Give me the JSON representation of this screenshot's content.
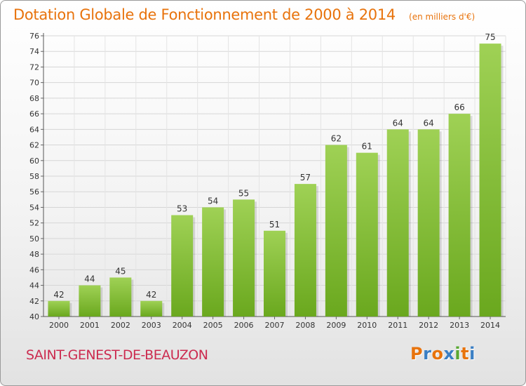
{
  "header": {
    "title": "Dotation Globale de Fonctionnement de 2000 à 2014",
    "subtitle": "(en milliers d'€)"
  },
  "footer": {
    "commune": "SAINT-GENEST-DE-BEAUZON",
    "logo_letters": [
      "P",
      "r",
      "o",
      "x",
      "i",
      "t",
      "i"
    ],
    "logo_colors": [
      "#e8730c",
      "#3a7fc4",
      "#e8730c",
      "#3a7fc4",
      "#59a832",
      "#e8730c",
      "#3a7fc4"
    ]
  },
  "chart_data": {
    "type": "bar",
    "categories": [
      "2000",
      "2001",
      "2002",
      "2003",
      "2004",
      "2005",
      "2006",
      "2007",
      "2008",
      "2009",
      "2010",
      "2011",
      "2012",
      "2013",
      "2014"
    ],
    "values": [
      42,
      44,
      45,
      42,
      53,
      54,
      55,
      51,
      57,
      62,
      61,
      64,
      64,
      66,
      75
    ],
    "ylim": [
      40,
      76
    ],
    "yticks": [
      40,
      42,
      44,
      46,
      48,
      50,
      52,
      54,
      56,
      58,
      60,
      62,
      64,
      66,
      68,
      70,
      72,
      74,
      76
    ],
    "grid": true,
    "bar_color_top": "#9fd155",
    "bar_color_bottom": "#6aa81e",
    "data_labels": true
  }
}
